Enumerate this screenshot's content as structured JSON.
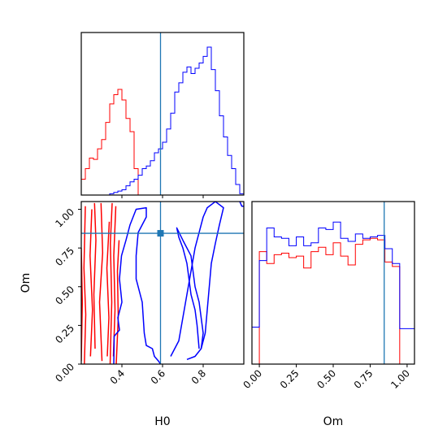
{
  "figure": {
    "background": "#ffffff"
  },
  "chart_data": [
    {
      "type": "histogram",
      "panel": "H0-marginal",
      "xlim": [
        0.2,
        1.0
      ],
      "bins": [
        0.2,
        0.22,
        0.24,
        0.26,
        0.28,
        0.3,
        0.32,
        0.34,
        0.36,
        0.38,
        0.4,
        0.42,
        0.44,
        0.46,
        0.48,
        0.5,
        0.52,
        0.54,
        0.56,
        0.58,
        0.6,
        0.62,
        0.64,
        0.66,
        0.68,
        0.7,
        0.72,
        0.74,
        0.76,
        0.78,
        0.8,
        0.82,
        0.84,
        0.86,
        0.88,
        0.9,
        0.92,
        0.94,
        0.96,
        0.98,
        1.0
      ],
      "series": [
        {
          "color": "#ff0000",
          "counts": [
            12,
            20,
            28,
            27,
            35,
            42,
            55,
            69,
            76,
            80,
            72,
            58,
            48,
            20,
            0,
            0,
            0,
            0,
            0,
            0,
            0,
            0,
            0,
            0,
            0,
            0,
            0,
            0,
            0,
            0,
            0,
            0,
            0,
            0,
            0,
            0,
            0,
            0,
            0,
            0
          ]
        },
        {
          "color": "#0000ff",
          "counts": [
            0,
            0,
            0,
            0,
            0,
            0,
            0,
            1,
            2,
            3,
            4,
            7,
            10,
            12,
            15,
            20,
            22,
            26,
            32,
            35,
            40,
            50,
            62,
            78,
            85,
            93,
            97,
            92,
            96,
            100,
            105,
            112,
            95,
            79,
            60,
            44,
            30,
            20,
            8,
            1
          ]
        }
      ],
      "truth": 0.59,
      "truth_color": "#1f77b4",
      "ticks_shown": false
    },
    {
      "type": "contour",
      "panel": "H0-Om-joint",
      "xlim": [
        0.2,
        1.0
      ],
      "ylim": [
        0.0,
        1.05
      ],
      "x_ticks": [
        "0.4",
        "0.6",
        "0.8"
      ],
      "y_ticks": [
        "0.00",
        "0.25",
        "0.50",
        "0.75",
        "1.00"
      ],
      "xlabel": "H0",
      "ylabel": "Om",
      "series": [
        {
          "color": "#ff0000",
          "levels": [
            [
              [
                0.2,
                0.02
              ],
              [
                0.205,
                0.4
              ],
              [
                0.2,
                0.75
              ]
            ],
            [
              [
                0.215,
                0.0
              ],
              [
                0.222,
                0.32
              ],
              [
                0.213,
                0.62
              ],
              [
                0.22,
                1.02
              ]
            ],
            [
              [
                0.245,
                0.05
              ],
              [
                0.255,
                0.35
              ],
              [
                0.243,
                0.7
              ],
              [
                0.252,
                1.0
              ]
            ],
            [
              [
                0.268,
                0.1
              ],
              [
                0.262,
                0.45
              ],
              [
                0.272,
                0.8
              ],
              [
                0.265,
                1.04
              ]
            ],
            [
              [
                0.302,
                0.02
              ],
              [
                0.29,
                0.4
              ],
              [
                0.305,
                0.72
              ],
              [
                0.297,
                1.04
              ]
            ],
            [
              [
                0.328,
                0.05
              ],
              [
                0.336,
                0.3
              ],
              [
                0.326,
                0.62
              ],
              [
                0.338,
                0.92
              ]
            ],
            [
              [
                0.342,
                0.0
              ],
              [
                0.35,
                0.4
              ],
              [
                0.343,
                0.78
              ],
              [
                0.352,
                1.04
              ]
            ],
            [
              [
                0.358,
                0.05
              ],
              [
                0.366,
                0.35
              ],
              [
                0.36,
                0.7
              ],
              [
                0.37,
                1.02
              ]
            ],
            [
              [
                0.372,
                0.0
              ],
              [
                0.382,
                0.3
              ],
              [
                0.378,
                0.6
              ],
              [
                0.386,
                0.8
              ]
            ]
          ]
        },
        {
          "color": "#0000ff",
          "levels": [
            [
              [
                0.36,
                0.0
              ],
              [
                0.362,
                0.18
              ],
              [
                0.388,
                0.22
              ],
              [
                0.38,
                0.3
              ],
              [
                0.4,
                0.4
              ],
              [
                0.388,
                0.55
              ],
              [
                0.398,
                0.7
              ],
              [
                0.42,
                0.8
              ],
              [
                0.44,
                0.9
              ],
              [
                0.47,
                1.0
              ],
              [
                0.52,
                1.01
              ],
              [
                0.52,
                0.95
              ],
              [
                0.48,
                0.85
              ],
              [
                0.47,
                0.7
              ],
              [
                0.47,
                0.55
              ],
              [
                0.5,
                0.4
              ],
              [
                0.51,
                0.2
              ],
              [
                0.52,
                0.12
              ],
              [
                0.55,
                0.1
              ],
              [
                0.56,
                0.05
              ],
              [
                0.58,
                0.02
              ],
              [
                0.59,
                0.0
              ]
            ],
            [
              [
                0.78,
                0.1
              ],
              [
                0.77,
                0.25
              ],
              [
                0.76,
                0.35
              ],
              [
                0.74,
                0.45
              ],
              [
                0.73,
                0.55
              ],
              [
                0.72,
                0.65
              ],
              [
                0.7,
                0.75
              ],
              [
                0.68,
                0.82
              ],
              [
                0.67,
                0.88
              ],
              [
                0.7,
                0.8
              ],
              [
                0.74,
                0.7
              ],
              [
                0.75,
                0.6
              ],
              [
                0.76,
                0.5
              ],
              [
                0.78,
                0.4
              ],
              [
                0.79,
                0.3
              ],
              [
                0.8,
                0.2
              ],
              [
                0.79,
                0.1
              ]
            ],
            [
              [
                0.64,
                0.05
              ],
              [
                0.68,
                0.15
              ],
              [
                0.7,
                0.3
              ],
              [
                0.72,
                0.45
              ],
              [
                0.74,
                0.6
              ],
              [
                0.76,
                0.75
              ],
              [
                0.78,
                0.85
              ],
              [
                0.8,
                0.95
              ],
              [
                0.82,
                1.01
              ],
              [
                0.86,
                1.05
              ],
              [
                0.9,
                1.01
              ],
              [
                0.88,
                0.9
              ],
              [
                0.86,
                0.78
              ],
              [
                0.84,
                0.65
              ],
              [
                0.83,
                0.5
              ],
              [
                0.82,
                0.35
              ],
              [
                0.81,
                0.2
              ],
              [
                0.79,
                0.1
              ],
              [
                0.76,
                0.05
              ],
              [
                0.72,
                0.03
              ]
            ],
            [
              [
                0.98,
                1.05
              ],
              [
                0.99,
                1.02
              ],
              [
                1.0,
                1.02
              ]
            ]
          ]
        }
      ],
      "truth": {
        "x": 0.59,
        "y": 0.845
      },
      "truth_color": "#1f77b4"
    },
    {
      "type": "histogram",
      "panel": "Om-marginal",
      "xlim": [
        -0.05,
        1.05
      ],
      "x_ticks": [
        "0.00",
        "0.25",
        "0.50",
        "0.75",
        "1.00"
      ],
      "xlabel": "Om",
      "bins": [
        -0.05,
        0.0,
        0.05,
        0.1,
        0.15,
        0.2,
        0.25,
        0.3,
        0.35,
        0.4,
        0.45,
        0.5,
        0.55,
        0.6,
        0.65,
        0.7,
        0.75,
        0.8,
        0.85,
        0.9,
        0.95,
        1.0,
        1.05
      ],
      "series": [
        {
          "color": "#ff0000",
          "counts": [
            0,
            0.76,
            0.68,
            0.74,
            0.75,
            0.72,
            0.73,
            0.65,
            0.76,
            0.79,
            0.74,
            0.82,
            0.73,
            0.67,
            0.81,
            0.84,
            0.85,
            0.84,
            0.69,
            0.66,
            0.0,
            0.0
          ]
        },
        {
          "color": "#0000ff",
          "counts": [
            0.25,
            0.7,
            0.92,
            0.86,
            0.85,
            0.8,
            0.86,
            0.8,
            0.82,
            0.92,
            0.91,
            0.96,
            0.85,
            0.83,
            0.88,
            0.85,
            0.86,
            0.87,
            0.78,
            0.68,
            0.24,
            0.24
          ]
        }
      ],
      "truth": 0.845,
      "truth_color": "#1f77b4",
      "ticks_shown": true
    }
  ]
}
